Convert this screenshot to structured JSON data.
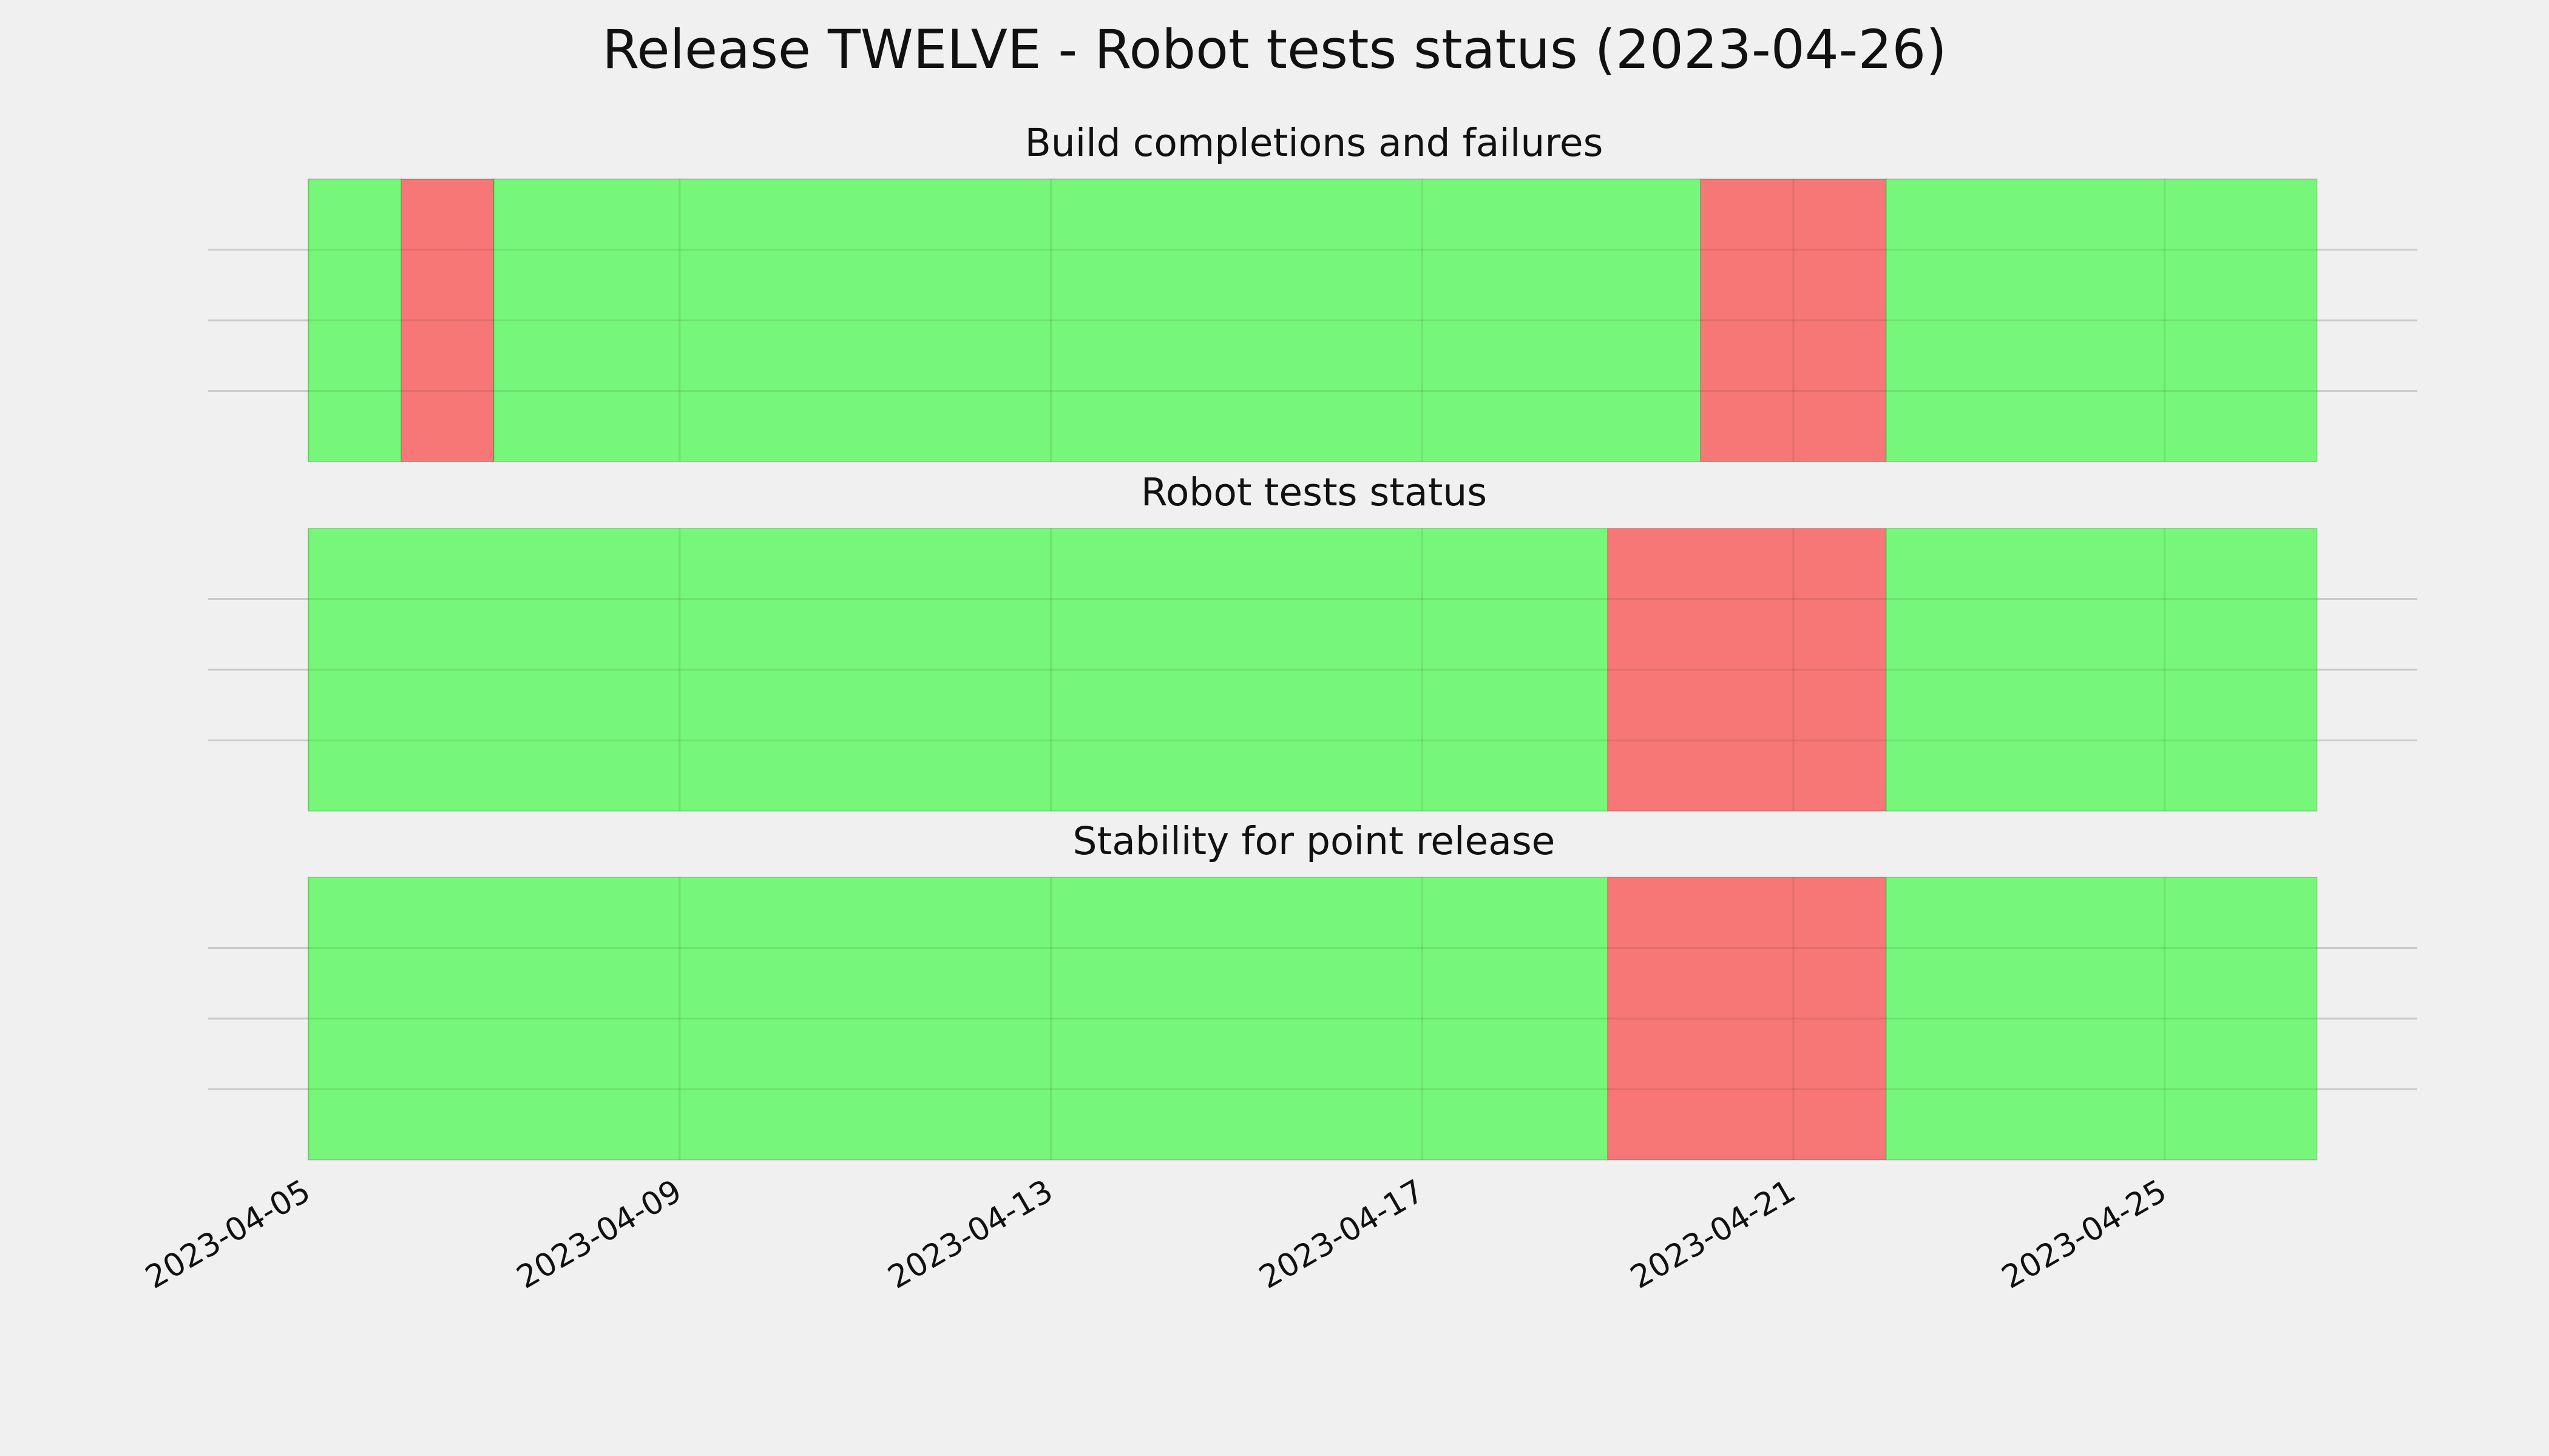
{
  "title": "Release TWELVE - Robot tests status (2023-04-26)",
  "chart_data": [
    {
      "type": "timeline",
      "title": "Build completions and failures",
      "bins": [
        "2023-04-05",
        "2023-04-06",
        "2023-04-07",
        "2023-04-20",
        "2023-04-22",
        "2023-04-26T15:22"
      ],
      "colors": [
        "#77f779",
        "#f77777",
        "#77f779",
        "#f77777",
        "#77f779"
      ],
      "xlim": [
        "2023-04-03T22:05",
        "2023-04-27T17:20"
      ],
      "xticks": [
        "2023-04-05",
        "2023-04-09",
        "2023-04-13",
        "2023-04-17",
        "2023-04-21",
        "2023-04-25"
      ],
      "ylim": [
        0,
        1
      ],
      "yticks": [
        0.25,
        0.5,
        0.75
      ],
      "grid": true
    },
    {
      "type": "timeline",
      "title": "Robot tests status",
      "bins": [
        "2023-04-05",
        "2023-04-19",
        "2023-04-22",
        "2023-04-26T15:22"
      ],
      "colors": [
        "#77f779",
        "#f77777",
        "#77f779"
      ],
      "xlim": [
        "2023-04-03T22:05",
        "2023-04-27T17:20"
      ],
      "xticks": [
        "2023-04-05",
        "2023-04-09",
        "2023-04-13",
        "2023-04-17",
        "2023-04-21",
        "2023-04-25"
      ],
      "ylim": [
        0,
        1
      ],
      "yticks": [
        0.25,
        0.5,
        0.75
      ],
      "grid": true
    },
    {
      "type": "timeline",
      "title": "Stability for point release",
      "bins": [
        "2023-04-05",
        "2023-04-19",
        "2023-04-22",
        "2023-04-26T15:22"
      ],
      "colors": [
        "#77f779",
        "#f77777",
        "#77f779"
      ],
      "xlim": [
        "2023-04-03T22:05",
        "2023-04-27T17:20"
      ],
      "xticks": [
        "2023-04-05",
        "2023-04-09",
        "2023-04-13",
        "2023-04-17",
        "2023-04-21",
        "2023-04-25"
      ],
      "ylim": [
        0,
        1
      ],
      "yticks": [
        0.25,
        0.5,
        0.75
      ],
      "grid": true
    }
  ]
}
